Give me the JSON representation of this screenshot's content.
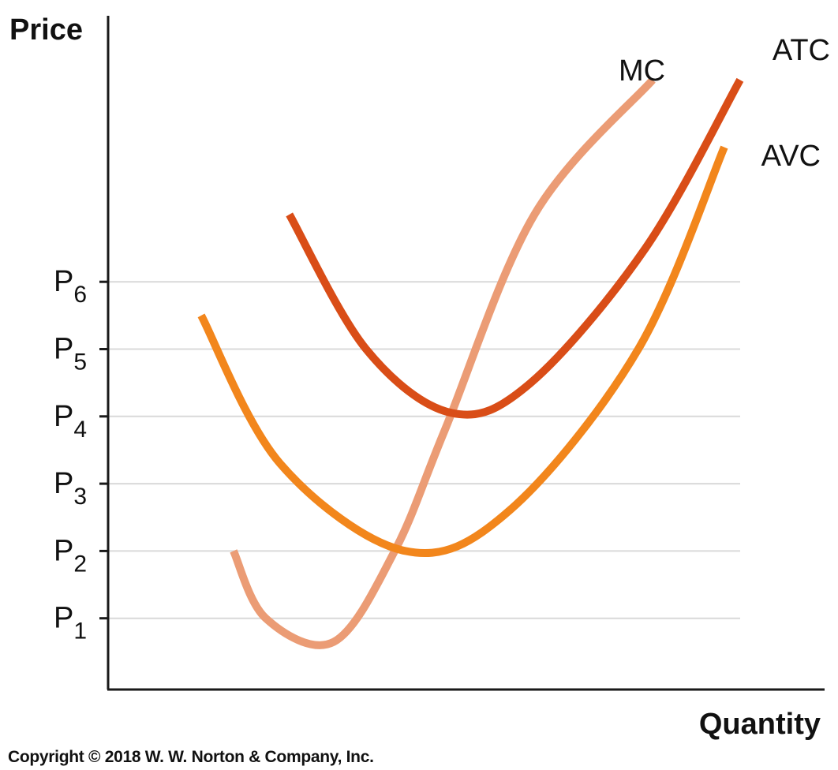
{
  "copyright": "Copyright © 2018 W. W. Norton & Company, Inc.",
  "chart_data": {
    "type": "line",
    "ylabel": "Price",
    "xlabel": "Quantity",
    "xlim": [
      0,
      100
    ],
    "ylim": [
      0,
      10
    ],
    "grid": true,
    "y_ticks": [
      {
        "base": "P",
        "sub": "1",
        "value": 1
      },
      {
        "base": "P",
        "sub": "2",
        "value": 2
      },
      {
        "base": "P",
        "sub": "3",
        "value": 3
      },
      {
        "base": "P",
        "sub": "4",
        "value": 4
      },
      {
        "base": "P",
        "sub": "5",
        "value": 5
      },
      {
        "base": "P",
        "sub": "6",
        "value": 6
      }
    ],
    "series": [
      {
        "name": "MC",
        "color": "#eb9c75",
        "points": [
          [
            17.5,
            2.0
          ],
          [
            22,
            1.0
          ],
          [
            31.5,
            0.65
          ],
          [
            40,
            2.0
          ],
          [
            47,
            3.8
          ],
          [
            59.5,
            7.0
          ],
          [
            76,
            9.0
          ]
        ]
      },
      {
        "name": "ATC",
        "color": "#d94d17",
        "points": [
          [
            25.3,
            7.0
          ],
          [
            36,
            5.0
          ],
          [
            48,
            4.05
          ],
          [
            59,
            4.5
          ],
          [
            75,
            6.5
          ],
          [
            88.2,
            9.0
          ]
        ]
      },
      {
        "name": "AVC",
        "color": "#f2861c",
        "points": [
          [
            13,
            5.5
          ],
          [
            24,
            3.3
          ],
          [
            41.5,
            2.0
          ],
          [
            56,
            2.6
          ],
          [
            74,
            5.0
          ],
          [
            86,
            8.0
          ]
        ]
      }
    ]
  }
}
